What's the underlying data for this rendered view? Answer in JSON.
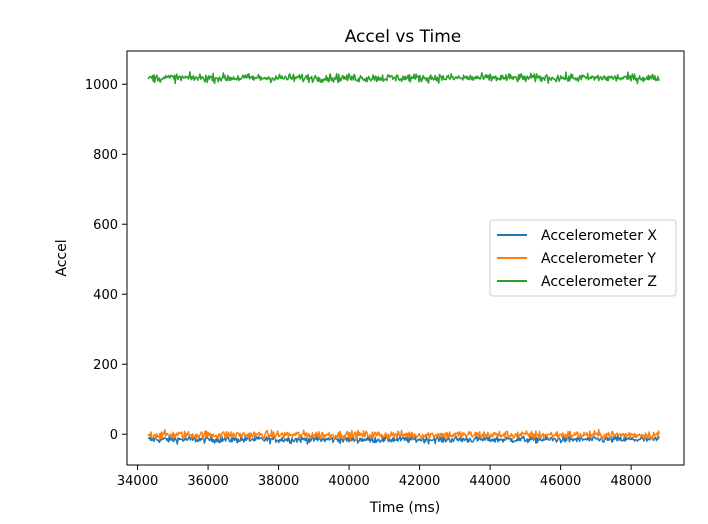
{
  "chart_data": {
    "type": "line",
    "title": "Accel vs Time",
    "xlabel": "Time (ms)",
    "ylabel": "Accel",
    "xlim": [
      33700,
      49500
    ],
    "ylim": [
      -88,
      1095
    ],
    "xticks": [
      34000,
      36000,
      38000,
      40000,
      42000,
      44000,
      46000,
      48000
    ],
    "yticks": [
      0,
      200,
      400,
      600,
      800,
      1000
    ],
    "grid": false,
    "legend_position": "center-right",
    "x_range": [
      34300,
      48800
    ],
    "series": [
      {
        "name": "Accelerometer X",
        "color": "#1f77b4",
        "mean": -15,
        "noise": 5
      },
      {
        "name": "Accelerometer Y",
        "color": "#ff7f0e",
        "mean": -2,
        "noise": 6
      },
      {
        "name": "Accelerometer Z",
        "color": "#2ca02c",
        "mean": 1018,
        "noise": 6
      }
    ]
  }
}
